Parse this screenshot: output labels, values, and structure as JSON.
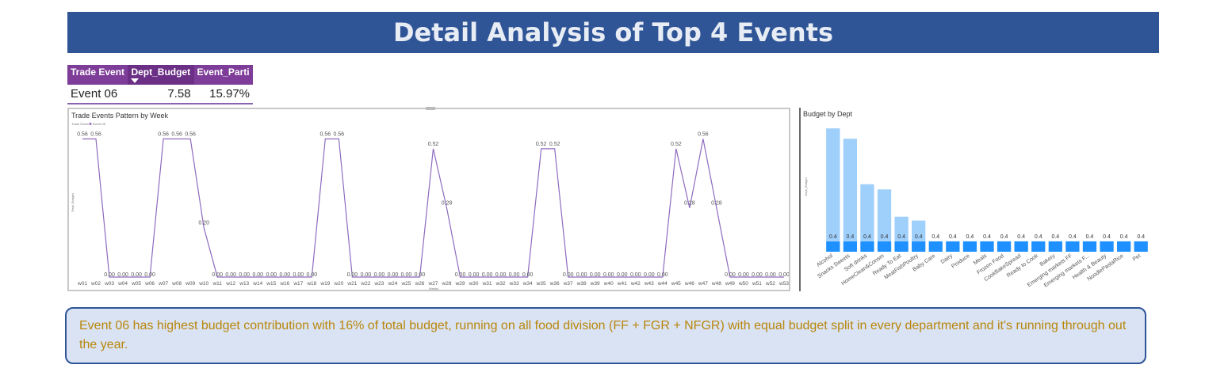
{
  "header": {
    "title": "Detail Analysis of Top 4 Events"
  },
  "table": {
    "columns": [
      "Trade Event",
      "Dept_Budget",
      "Event_Parti"
    ],
    "rows": [
      [
        "Event 06",
        "7.58",
        "15.97%"
      ]
    ]
  },
  "note": {
    "text": "Event 06 has highest budget contribution with 16% of total budget, running on all food division (FF + FGR + NFGR) with equal budget split in every department and it's running through out the year."
  },
  "chart_data": [
    {
      "type": "line",
      "title": "Trade Events Pattern by Week",
      "legend_title": "Trade Event",
      "legend": [
        "Event 06"
      ],
      "xlabel": "Weeks",
      "ylabel": "Dept_Budget",
      "ylim": [
        0,
        0.6
      ],
      "color": "#8e6bbf",
      "x": [
        "w01",
        "w02",
        "w03",
        "w04",
        "w05",
        "w06",
        "w07",
        "w08",
        "w09",
        "w10",
        "w11",
        "w12",
        "w13",
        "w14",
        "w15",
        "w16",
        "w17",
        "w18",
        "w19",
        "w20",
        "w21",
        "w22",
        "w23",
        "w24",
        "w25",
        "w26",
        "w27",
        "w28",
        "w29",
        "w30",
        "w31",
        "w32",
        "w33",
        "w34",
        "w35",
        "w36",
        "w37",
        "w38",
        "w39",
        "w40",
        "w41",
        "w42",
        "w43",
        "w44",
        "w45",
        "w46",
        "w47",
        "w48",
        "w49",
        "w50",
        "w51",
        "w52",
        "w53"
      ],
      "series": [
        {
          "values": [
            0.56,
            0.56,
            0,
            0,
            0,
            0,
            0.56,
            0.56,
            0.56,
            0.2,
            0,
            0,
            0,
            0,
            0,
            0,
            0,
            0,
            0.56,
            0.56,
            0,
            0,
            0,
            0,
            0,
            0,
            0.52,
            0.28,
            0,
            0,
            0,
            0,
            0,
            0,
            0.52,
            0.52,
            0,
            0,
            0,
            0,
            0,
            0,
            0,
            0,
            0.52,
            0.28,
            0.56,
            0.28,
            0,
            0,
            0,
            0,
            0
          ]
        }
      ],
      "data_labels": [
        "0.56",
        "0.56",
        "0.00",
        "0.00",
        "0.00",
        "0.00",
        "0.56",
        "0.56",
        "0.56",
        "0.20",
        "0.00",
        "0.00",
        "0.00",
        "0.00",
        "0.00",
        "0.00",
        "0.00",
        "0.00",
        "0.56",
        "0.56",
        "0.00",
        "0.00",
        "0.00",
        "0.00",
        "0.00",
        "0.00",
        "0.52",
        "0.28",
        "0.00",
        "0.00",
        "0.00",
        "0.00",
        "0.00",
        "0.00",
        "0.52",
        "0.52",
        "0.00",
        "0.00",
        "0.00",
        "0.00",
        "0.00",
        "0.00",
        "0.00",
        "0.00",
        "0.52",
        "0.28",
        "0.56",
        "0.28",
        "0.00",
        "0.00",
        "0.00",
        "0.00",
        "0.00"
      ]
    },
    {
      "type": "bar",
      "title": "Budget by Dept",
      "ylabel": "Dept_Budget",
      "ylim": [
        0,
        1.0
      ],
      "colors": {
        "light": "#9fcffb",
        "dark": "#1e90ff"
      },
      "categories": [
        "Alcohol",
        "Snacks Sweets",
        "Soft drinks",
        "HomeClean&Consm",
        "Ready To Eat",
        "MeatFishPoultry",
        "Baby Care",
        "Dairy",
        "Produce",
        "Meals",
        "Frozen Food",
        "CookBakeSpread",
        "Ready to Cook",
        "Bakery",
        "Emerging markets FF",
        "Emerging markets F...",
        "Health & Beauty",
        "NoodlePastaRice",
        "Pet"
      ],
      "series": [
        {
          "name": "other",
          "values": [
            0.87,
            0.79,
            0.44,
            0.4,
            0.19,
            0.16,
            0.0,
            0.0,
            0.0,
            0.0,
            0.0,
            0.0,
            0.0,
            0.0,
            0.0,
            0.0,
            0.0,
            0.0,
            0.0
          ]
        },
        {
          "name": "base",
          "values": [
            0.08,
            0.08,
            0.08,
            0.08,
            0.08,
            0.08,
            0.08,
            0.08,
            0.08,
            0.08,
            0.08,
            0.08,
            0.08,
            0.08,
            0.08,
            0.08,
            0.08,
            0.08,
            0.08
          ]
        }
      ],
      "data_labels": [
        "0.4",
        "0.4",
        "0.4",
        "0.4",
        "0.4",
        "0.4",
        "0.4",
        "0.4",
        "0.4",
        "0.4",
        "0.4",
        "0.4",
        "0.4",
        "0.4",
        "0.4",
        "0.4",
        "0.4",
        "0.4",
        "0.4"
      ]
    }
  ]
}
